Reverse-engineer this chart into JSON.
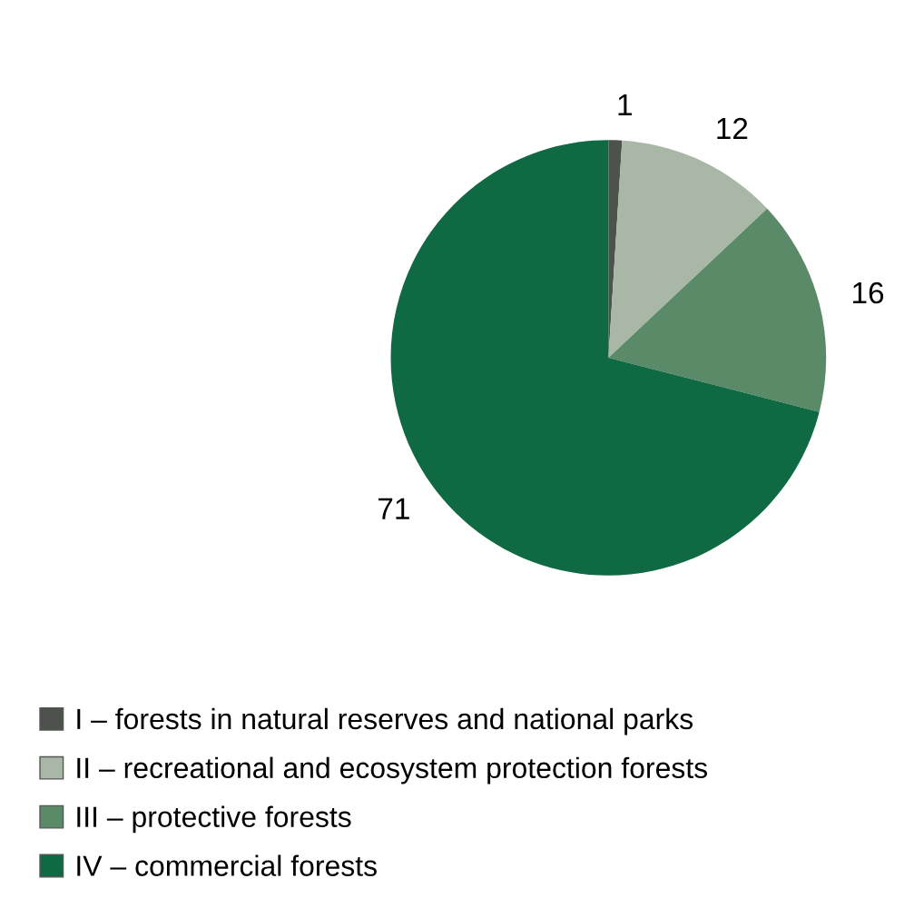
{
  "chart_data": {
    "type": "pie",
    "categories": [
      "I – forests in natural reserves and national parks",
      "II – recreational and ecosystem protection forests",
      "III – protective forests",
      "IV – commercial forests"
    ],
    "values": [
      1,
      12,
      16,
      71
    ],
    "colors": [
      "#4d524d",
      "#a9b8a6",
      "#5b8a68",
      "#0f6a43"
    ],
    "data_labels": true,
    "legend": "bottom"
  }
}
